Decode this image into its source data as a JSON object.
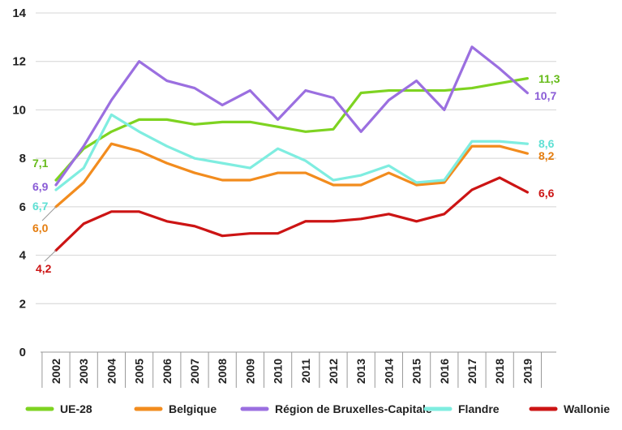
{
  "chart_data": {
    "type": "line",
    "title": "",
    "xlabel": "",
    "ylabel": "",
    "ylim": [
      0,
      14
    ],
    "yticks": [
      "0",
      "2",
      "4",
      "6",
      "8",
      "10",
      "12",
      "14"
    ],
    "grid": "horizontal",
    "legend": "bottom",
    "categories": [
      "2002",
      "2003",
      "2004",
      "2005",
      "2006",
      "2007",
      "2008",
      "2009",
      "2010",
      "2011",
      "2012",
      "2013",
      "2014",
      "2015",
      "2016",
      "2017",
      "2018",
      "2019"
    ],
    "series": [
      {
        "name": "UE-28",
        "color": "#7ED321",
        "label_color": "#66BB1A",
        "values": [
          7.1,
          8.4,
          9.1,
          9.6,
          9.6,
          9.4,
          9.5,
          9.5,
          9.3,
          9.1,
          9.2,
          10.7,
          10.8,
          10.8,
          10.8,
          10.9,
          11.1,
          11.3
        ],
        "start_label": "7,1",
        "end_label": "11,3"
      },
      {
        "name": "Belgique",
        "color": "#F28C1E",
        "label_color": "#E57E10",
        "values": [
          6.0,
          7.0,
          8.6,
          8.3,
          7.8,
          7.4,
          7.1,
          7.1,
          7.4,
          7.4,
          6.9,
          6.9,
          7.4,
          6.9,
          7.0,
          8.5,
          8.5,
          8.2
        ],
        "start_label": "6,0",
        "end_label": "8,2"
      },
      {
        "name": "Région de Bruxelles-Capitale",
        "color": "#9B6FE0",
        "label_color": "#8A5CD6",
        "values": [
          6.9,
          8.5,
          10.4,
          12.0,
          11.2,
          10.9,
          10.2,
          10.8,
          9.6,
          10.8,
          10.5,
          9.1,
          10.4,
          11.2,
          10.0,
          12.6,
          11.7,
          10.7
        ],
        "start_label": "6,9",
        "end_label": "10,7"
      },
      {
        "name": "Flandre",
        "color": "#7FEDE0",
        "label_color": "#5FE0D4",
        "values": [
          6.7,
          7.6,
          9.8,
          9.1,
          8.5,
          8.0,
          7.8,
          7.6,
          8.4,
          7.9,
          7.1,
          7.3,
          7.7,
          7.0,
          7.1,
          8.7,
          8.7,
          8.6
        ],
        "start_label": "6,7",
        "end_label": "8,6"
      },
      {
        "name": "Wallonie",
        "color": "#CC1414",
        "label_color": "#CC1414",
        "values": [
          4.2,
          5.3,
          5.8,
          5.8,
          5.4,
          5.2,
          4.8,
          4.9,
          4.9,
          5.4,
          5.4,
          5.5,
          5.7,
          5.4,
          5.7,
          6.7,
          7.2,
          6.6
        ],
        "start_label": "4,2",
        "end_label": "6,6"
      }
    ]
  }
}
